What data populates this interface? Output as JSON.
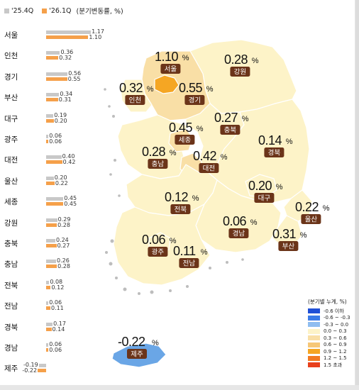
{
  "legend": {
    "series_prev": "'25.4Q",
    "series_curr": "'26.1Q",
    "note": "(분기변동률, %)",
    "color_prev": "#c8c8c8",
    "color_curr": "#f5a04a"
  },
  "chart_data": {
    "type": "bar",
    "orientation": "horizontal",
    "categories": [
      "서울",
      "인천",
      "경기",
      "부산",
      "대구",
      "광주",
      "대전",
      "울산",
      "세종",
      "강원",
      "충북",
      "충남",
      "전북",
      "전남",
      "경북",
      "경남",
      "제주"
    ],
    "series": [
      {
        "name": "'25.4Q",
        "values": [
          1.17,
          0.36,
          0.56,
          0.34,
          0.19,
          0.06,
          0.4,
          0.2,
          0.45,
          0.29,
          0.24,
          0.26,
          0.08,
          0.06,
          0.17,
          0.06,
          -0.19
        ]
      },
      {
        "name": "'26.1Q",
        "values": [
          1.1,
          0.32,
          0.55,
          0.31,
          0.2,
          0.06,
          0.42,
          0.22,
          0.45,
          0.28,
          0.27,
          0.28,
          0.12,
          0.11,
          0.14,
          0.06,
          -0.22
        ]
      }
    ],
    "value_labels": {
      "prev": [
        "1.17",
        "0.36",
        "0.56",
        "0.34",
        "0.19",
        "0.06",
        "0.40",
        "0.20",
        "0.45",
        "0.29",
        "0.24",
        "0.26",
        "0.08",
        "0.06",
        "0.17",
        "0.06",
        "-0.19"
      ],
      "curr": [
        "1.10",
        "0.32",
        "0.55",
        "0.31",
        "0.20",
        "0.06",
        "0.42",
        "0.22",
        "0.45",
        "0.28",
        "0.27",
        "0.28",
        "0.12",
        "0.11",
        "0.14",
        "0.06",
        "-0.22"
      ]
    }
  },
  "map": {
    "regions": [
      {
        "key": "seoul",
        "name": "서울",
        "value": "1.10",
        "color": "#f5a623"
      },
      {
        "key": "incheon",
        "name": "인천",
        "value": "0.32",
        "color": "#fdf3c8"
      },
      {
        "key": "gyeonggi",
        "name": "경기",
        "value": "0.55",
        "color": "#f9dfa6"
      },
      {
        "key": "gangwon",
        "name": "강원",
        "value": "0.28",
        "color": "#fdf3c8"
      },
      {
        "key": "chungbuk",
        "name": "충북",
        "value": "0.27",
        "color": "#fdf3c8"
      },
      {
        "key": "sejong",
        "name": "세종",
        "value": "0.45",
        "color": "#f9dfa6"
      },
      {
        "key": "chungnam",
        "name": "충남",
        "value": "0.28",
        "color": "#fdf3c8"
      },
      {
        "key": "daejeon",
        "name": "대전",
        "value": "0.42",
        "color": "#f9dfa6"
      },
      {
        "key": "gyeongbuk",
        "name": "경북",
        "value": "0.14",
        "color": "#fdf3c8"
      },
      {
        "key": "daegu",
        "name": "대구",
        "value": "0.20",
        "color": "#fdf3c8"
      },
      {
        "key": "jeonbuk",
        "name": "전북",
        "value": "0.12",
        "color": "#fdf3c8"
      },
      {
        "key": "ulsan",
        "name": "울산",
        "value": "0.22",
        "color": "#fdf3c8"
      },
      {
        "key": "gyeongnam",
        "name": "경남",
        "value": "0.06",
        "color": "#fdf3c8"
      },
      {
        "key": "busan",
        "name": "부산",
        "value": "0.31",
        "color": "#fdf3c8"
      },
      {
        "key": "gwangju",
        "name": "광주",
        "value": "0.06",
        "color": "#fdf3c8"
      },
      {
        "key": "jeonnam",
        "name": "전남",
        "value": "0.11",
        "color": "#fdf3c8"
      },
      {
        "key": "jeju",
        "name": "제주",
        "value": "-0.22",
        "color": "#6aa6e6"
      }
    ],
    "pct": "%",
    "tag_color": "#6b3419"
  },
  "scale": {
    "title": "(분기별 누계, %)",
    "items": [
      {
        "label": "-0.6 이하",
        "color": "#1f4fd6"
      },
      {
        "label": "-0.6 ~ -0.3",
        "color": "#3b7be8"
      },
      {
        "label": "-0.3 ~ 0.0",
        "color": "#8fbdf0"
      },
      {
        "label": "0.0 ~ 0.3",
        "color": "#fdf3c8"
      },
      {
        "label": "0.3 ~ 0.6",
        "color": "#f9dfa6"
      },
      {
        "label": "0.6 ~ 0.9",
        "color": "#f6c777"
      },
      {
        "label": "0.9 ~ 1.2",
        "color": "#f5a623"
      },
      {
        "label": "1.2 ~ 1.5",
        "color": "#f27a22"
      },
      {
        "label": "1.5 초과",
        "color": "#e8401c"
      }
    ]
  }
}
